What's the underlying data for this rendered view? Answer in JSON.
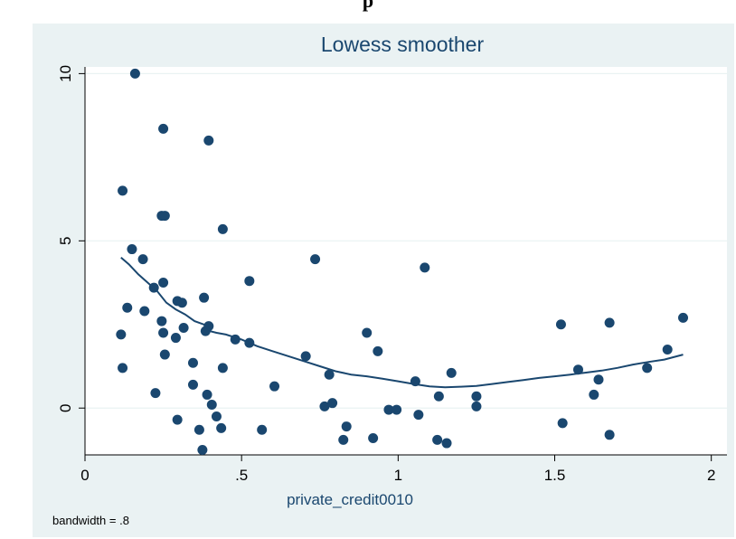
{
  "page": {
    "heading": "p"
  },
  "chart_data": {
    "type": "scatter",
    "title": "Lowess smoother",
    "xlabel": "private_credit0010",
    "ylabel": "",
    "note": "bandwidth = .8",
    "xlim": [
      0,
      2.05
    ],
    "ylim": [
      -1.4,
      10.2
    ],
    "x_ticks": [
      0,
      0.5,
      1,
      1.5,
      2
    ],
    "x_tick_labels": [
      "0",
      ".5",
      "1",
      "1.5",
      "2"
    ],
    "y_ticks": [
      0,
      5,
      10
    ],
    "y_tick_labels": [
      "0",
      "5",
      "10"
    ],
    "grid": "horizontal",
    "legend": "none",
    "colors": {
      "background": "#eaf2f3",
      "plot_area": "#ffffff",
      "marker": "#1a476f",
      "line": "#1a476f",
      "title": "#1a476f"
    },
    "series": [
      {
        "kind": "scatter",
        "points": [
          [
            0.16,
            10.0
          ],
          [
            0.25,
            8.35
          ],
          [
            0.395,
            8.0
          ],
          [
            0.12,
            6.5
          ],
          [
            0.245,
            5.75
          ],
          [
            0.255,
            5.75
          ],
          [
            0.44,
            5.35
          ],
          [
            0.15,
            4.75
          ],
          [
            0.185,
            4.45
          ],
          [
            0.735,
            4.45
          ],
          [
            1.085,
            4.2
          ],
          [
            0.25,
            3.75
          ],
          [
            0.525,
            3.8
          ],
          [
            0.22,
            3.6
          ],
          [
            0.38,
            3.3
          ],
          [
            0.135,
            3.0
          ],
          [
            0.295,
            3.2
          ],
          [
            0.31,
            3.15
          ],
          [
            0.19,
            2.9
          ],
          [
            0.245,
            2.6
          ],
          [
            0.395,
            2.45
          ],
          [
            0.315,
            2.4
          ],
          [
            0.385,
            2.3
          ],
          [
            1.91,
            2.7
          ],
          [
            1.52,
            2.5
          ],
          [
            1.675,
            2.55
          ],
          [
            0.115,
            2.2
          ],
          [
            0.25,
            2.25
          ],
          [
            0.29,
            2.1
          ],
          [
            0.9,
            2.25
          ],
          [
            0.48,
            2.05
          ],
          [
            0.525,
            1.95
          ],
          [
            0.935,
            1.7
          ],
          [
            1.86,
            1.75
          ],
          [
            0.255,
            1.6
          ],
          [
            0.705,
            1.55
          ],
          [
            0.345,
            1.35
          ],
          [
            0.12,
            1.2
          ],
          [
            0.44,
            1.2
          ],
          [
            1.575,
            1.15
          ],
          [
            1.795,
            1.2
          ],
          [
            1.17,
            1.05
          ],
          [
            0.78,
            1.0
          ],
          [
            1.64,
            0.85
          ],
          [
            1.055,
            0.8
          ],
          [
            0.345,
            0.7
          ],
          [
            0.605,
            0.65
          ],
          [
            0.225,
            0.45
          ],
          [
            0.39,
            0.4
          ],
          [
            1.13,
            0.35
          ],
          [
            1.25,
            0.35
          ],
          [
            1.625,
            0.4
          ],
          [
            0.765,
            0.05
          ],
          [
            0.79,
            0.15
          ],
          [
            0.405,
            0.1
          ],
          [
            0.97,
            -0.05
          ],
          [
            0.995,
            -0.05
          ],
          [
            1.25,
            0.05
          ],
          [
            0.42,
            -0.25
          ],
          [
            1.065,
            -0.2
          ],
          [
            0.295,
            -0.35
          ],
          [
            0.365,
            -0.65
          ],
          [
            0.435,
            -0.6
          ],
          [
            0.565,
            -0.65
          ],
          [
            0.835,
            -0.55
          ],
          [
            1.525,
            -0.45
          ],
          [
            1.675,
            -0.8
          ],
          [
            0.825,
            -0.95
          ],
          [
            0.92,
            -0.9
          ],
          [
            1.125,
            -0.95
          ],
          [
            1.155,
            -1.05
          ],
          [
            0.375,
            -1.25
          ]
        ]
      },
      {
        "kind": "line",
        "points": [
          [
            0.115,
            4.5
          ],
          [
            0.14,
            4.3
          ],
          [
            0.17,
            4.0
          ],
          [
            0.2,
            3.75
          ],
          [
            0.23,
            3.5
          ],
          [
            0.26,
            3.15
          ],
          [
            0.29,
            2.95
          ],
          [
            0.32,
            2.8
          ],
          [
            0.35,
            2.6
          ],
          [
            0.38,
            2.5
          ],
          [
            0.4,
            2.3
          ],
          [
            0.42,
            2.25
          ],
          [
            0.45,
            2.2
          ],
          [
            0.5,
            2.05
          ],
          [
            0.55,
            1.85
          ],
          [
            0.6,
            1.7
          ],
          [
            0.65,
            1.55
          ],
          [
            0.7,
            1.4
          ],
          [
            0.75,
            1.25
          ],
          [
            0.8,
            1.1
          ],
          [
            0.85,
            1.0
          ],
          [
            0.9,
            0.95
          ],
          [
            0.95,
            0.88
          ],
          [
            1.0,
            0.8
          ],
          [
            1.05,
            0.72
          ],
          [
            1.1,
            0.65
          ],
          [
            1.15,
            0.62
          ],
          [
            1.2,
            0.64
          ],
          [
            1.25,
            0.66
          ],
          [
            1.3,
            0.72
          ],
          [
            1.35,
            0.78
          ],
          [
            1.4,
            0.84
          ],
          [
            1.45,
            0.9
          ],
          [
            1.5,
            0.95
          ],
          [
            1.55,
            1.0
          ],
          [
            1.6,
            1.06
          ],
          [
            1.65,
            1.12
          ],
          [
            1.7,
            1.2
          ],
          [
            1.75,
            1.3
          ],
          [
            1.8,
            1.38
          ],
          [
            1.85,
            1.45
          ],
          [
            1.91,
            1.6
          ]
        ]
      }
    ]
  }
}
